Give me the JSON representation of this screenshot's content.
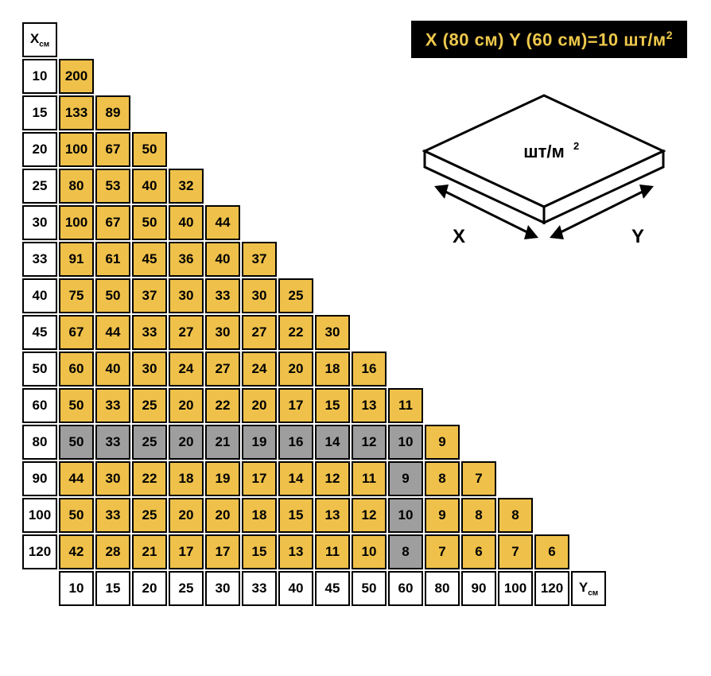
{
  "formula": {
    "prefix": "X (80 см) Y (60 см)=10 шт/м",
    "sup": "2",
    "bg": "#000000",
    "fg": "#efc94c"
  },
  "diagram": {
    "top_label": "шт/м",
    "top_sup": "2",
    "x_label": "X",
    "y_label": "Y",
    "stroke": "#000000",
    "font": "22"
  },
  "corner_x": {
    "main": "X",
    "sub": "см"
  },
  "corner_y": {
    "main": "Y",
    "sub": "см"
  },
  "row_headers": [
    "10",
    "15",
    "20",
    "25",
    "30",
    "33",
    "40",
    "45",
    "50",
    "60",
    "80",
    "90",
    "100",
    "120"
  ],
  "col_headers": [
    "10",
    "15",
    "20",
    "25",
    "30",
    "33",
    "40",
    "45",
    "50",
    "60",
    "80",
    "90",
    "100",
    "120"
  ],
  "colors": {
    "yellow": "#efc14a",
    "gray": "#9e9e9e",
    "white": "#ffffff",
    "border": "#000000"
  },
  "rows": [
    [
      {
        "v": "200",
        "c": "y"
      }
    ],
    [
      {
        "v": "133",
        "c": "y"
      },
      {
        "v": "89",
        "c": "y"
      }
    ],
    [
      {
        "v": "100",
        "c": "y"
      },
      {
        "v": "67",
        "c": "y"
      },
      {
        "v": "50",
        "c": "y"
      }
    ],
    [
      {
        "v": "80",
        "c": "y"
      },
      {
        "v": "53",
        "c": "y"
      },
      {
        "v": "40",
        "c": "y"
      },
      {
        "v": "32",
        "c": "y"
      }
    ],
    [
      {
        "v": "100",
        "c": "y"
      },
      {
        "v": "67",
        "c": "y"
      },
      {
        "v": "50",
        "c": "y"
      },
      {
        "v": "40",
        "c": "y"
      },
      {
        "v": "44",
        "c": "y"
      }
    ],
    [
      {
        "v": "91",
        "c": "y"
      },
      {
        "v": "61",
        "c": "y"
      },
      {
        "v": "45",
        "c": "y"
      },
      {
        "v": "36",
        "c": "y"
      },
      {
        "v": "40",
        "c": "y"
      },
      {
        "v": "37",
        "c": "y"
      }
    ],
    [
      {
        "v": "75",
        "c": "y"
      },
      {
        "v": "50",
        "c": "y"
      },
      {
        "v": "37",
        "c": "y"
      },
      {
        "v": "30",
        "c": "y"
      },
      {
        "v": "33",
        "c": "y"
      },
      {
        "v": "30",
        "c": "y"
      },
      {
        "v": "25",
        "c": "y"
      }
    ],
    [
      {
        "v": "67",
        "c": "y"
      },
      {
        "v": "44",
        "c": "y"
      },
      {
        "v": "33",
        "c": "y"
      },
      {
        "v": "27",
        "c": "y"
      },
      {
        "v": "30",
        "c": "y"
      },
      {
        "v": "27",
        "c": "y"
      },
      {
        "v": "22",
        "c": "y"
      },
      {
        "v": "30",
        "c": "y"
      }
    ],
    [
      {
        "v": "60",
        "c": "y"
      },
      {
        "v": "40",
        "c": "y"
      },
      {
        "v": "30",
        "c": "y"
      },
      {
        "v": "24",
        "c": "y"
      },
      {
        "v": "27",
        "c": "y"
      },
      {
        "v": "24",
        "c": "y"
      },
      {
        "v": "20",
        "c": "y"
      },
      {
        "v": "18",
        "c": "y"
      },
      {
        "v": "16",
        "c": "y"
      }
    ],
    [
      {
        "v": "50",
        "c": "y"
      },
      {
        "v": "33",
        "c": "y"
      },
      {
        "v": "25",
        "c": "y"
      },
      {
        "v": "20",
        "c": "y"
      },
      {
        "v": "22",
        "c": "y"
      },
      {
        "v": "20",
        "c": "y"
      },
      {
        "v": "17",
        "c": "y"
      },
      {
        "v": "15",
        "c": "y"
      },
      {
        "v": "13",
        "c": "y"
      },
      {
        "v": "11",
        "c": "y"
      }
    ],
    [
      {
        "v": "50",
        "c": "g"
      },
      {
        "v": "33",
        "c": "g"
      },
      {
        "v": "25",
        "c": "g"
      },
      {
        "v": "20",
        "c": "g"
      },
      {
        "v": "21",
        "c": "g"
      },
      {
        "v": "19",
        "c": "g"
      },
      {
        "v": "16",
        "c": "g"
      },
      {
        "v": "14",
        "c": "g"
      },
      {
        "v": "12",
        "c": "g"
      },
      {
        "v": "10",
        "c": "g"
      },
      {
        "v": "9",
        "c": "y"
      }
    ],
    [
      {
        "v": "44",
        "c": "y"
      },
      {
        "v": "30",
        "c": "y"
      },
      {
        "v": "22",
        "c": "y"
      },
      {
        "v": "18",
        "c": "y"
      },
      {
        "v": "19",
        "c": "y"
      },
      {
        "v": "17",
        "c": "y"
      },
      {
        "v": "14",
        "c": "y"
      },
      {
        "v": "12",
        "c": "y"
      },
      {
        "v": "11",
        "c": "y"
      },
      {
        "v": "9",
        "c": "g"
      },
      {
        "v": "8",
        "c": "y"
      },
      {
        "v": "7",
        "c": "y"
      }
    ],
    [
      {
        "v": "50",
        "c": "y"
      },
      {
        "v": "33",
        "c": "y"
      },
      {
        "v": "25",
        "c": "y"
      },
      {
        "v": "20",
        "c": "y"
      },
      {
        "v": "20",
        "c": "y"
      },
      {
        "v": "18",
        "c": "y"
      },
      {
        "v": "15",
        "c": "y"
      },
      {
        "v": "13",
        "c": "y"
      },
      {
        "v": "12",
        "c": "y"
      },
      {
        "v": "10",
        "c": "g"
      },
      {
        "v": "9",
        "c": "y"
      },
      {
        "v": "8",
        "c": "y"
      },
      {
        "v": "8",
        "c": "y"
      }
    ],
    [
      {
        "v": "42",
        "c": "y"
      },
      {
        "v": "28",
        "c": "y"
      },
      {
        "v": "21",
        "c": "y"
      },
      {
        "v": "17",
        "c": "y"
      },
      {
        "v": "17",
        "c": "y"
      },
      {
        "v": "15",
        "c": "y"
      },
      {
        "v": "13",
        "c": "y"
      },
      {
        "v": "11",
        "c": "y"
      },
      {
        "v": "10",
        "c": "y"
      },
      {
        "v": "8",
        "c": "g"
      },
      {
        "v": "7",
        "c": "y"
      },
      {
        "v": "6",
        "c": "y"
      },
      {
        "v": "7",
        "c": "y"
      },
      {
        "v": "6",
        "c": "y"
      }
    ]
  ],
  "n_cols": 14
}
